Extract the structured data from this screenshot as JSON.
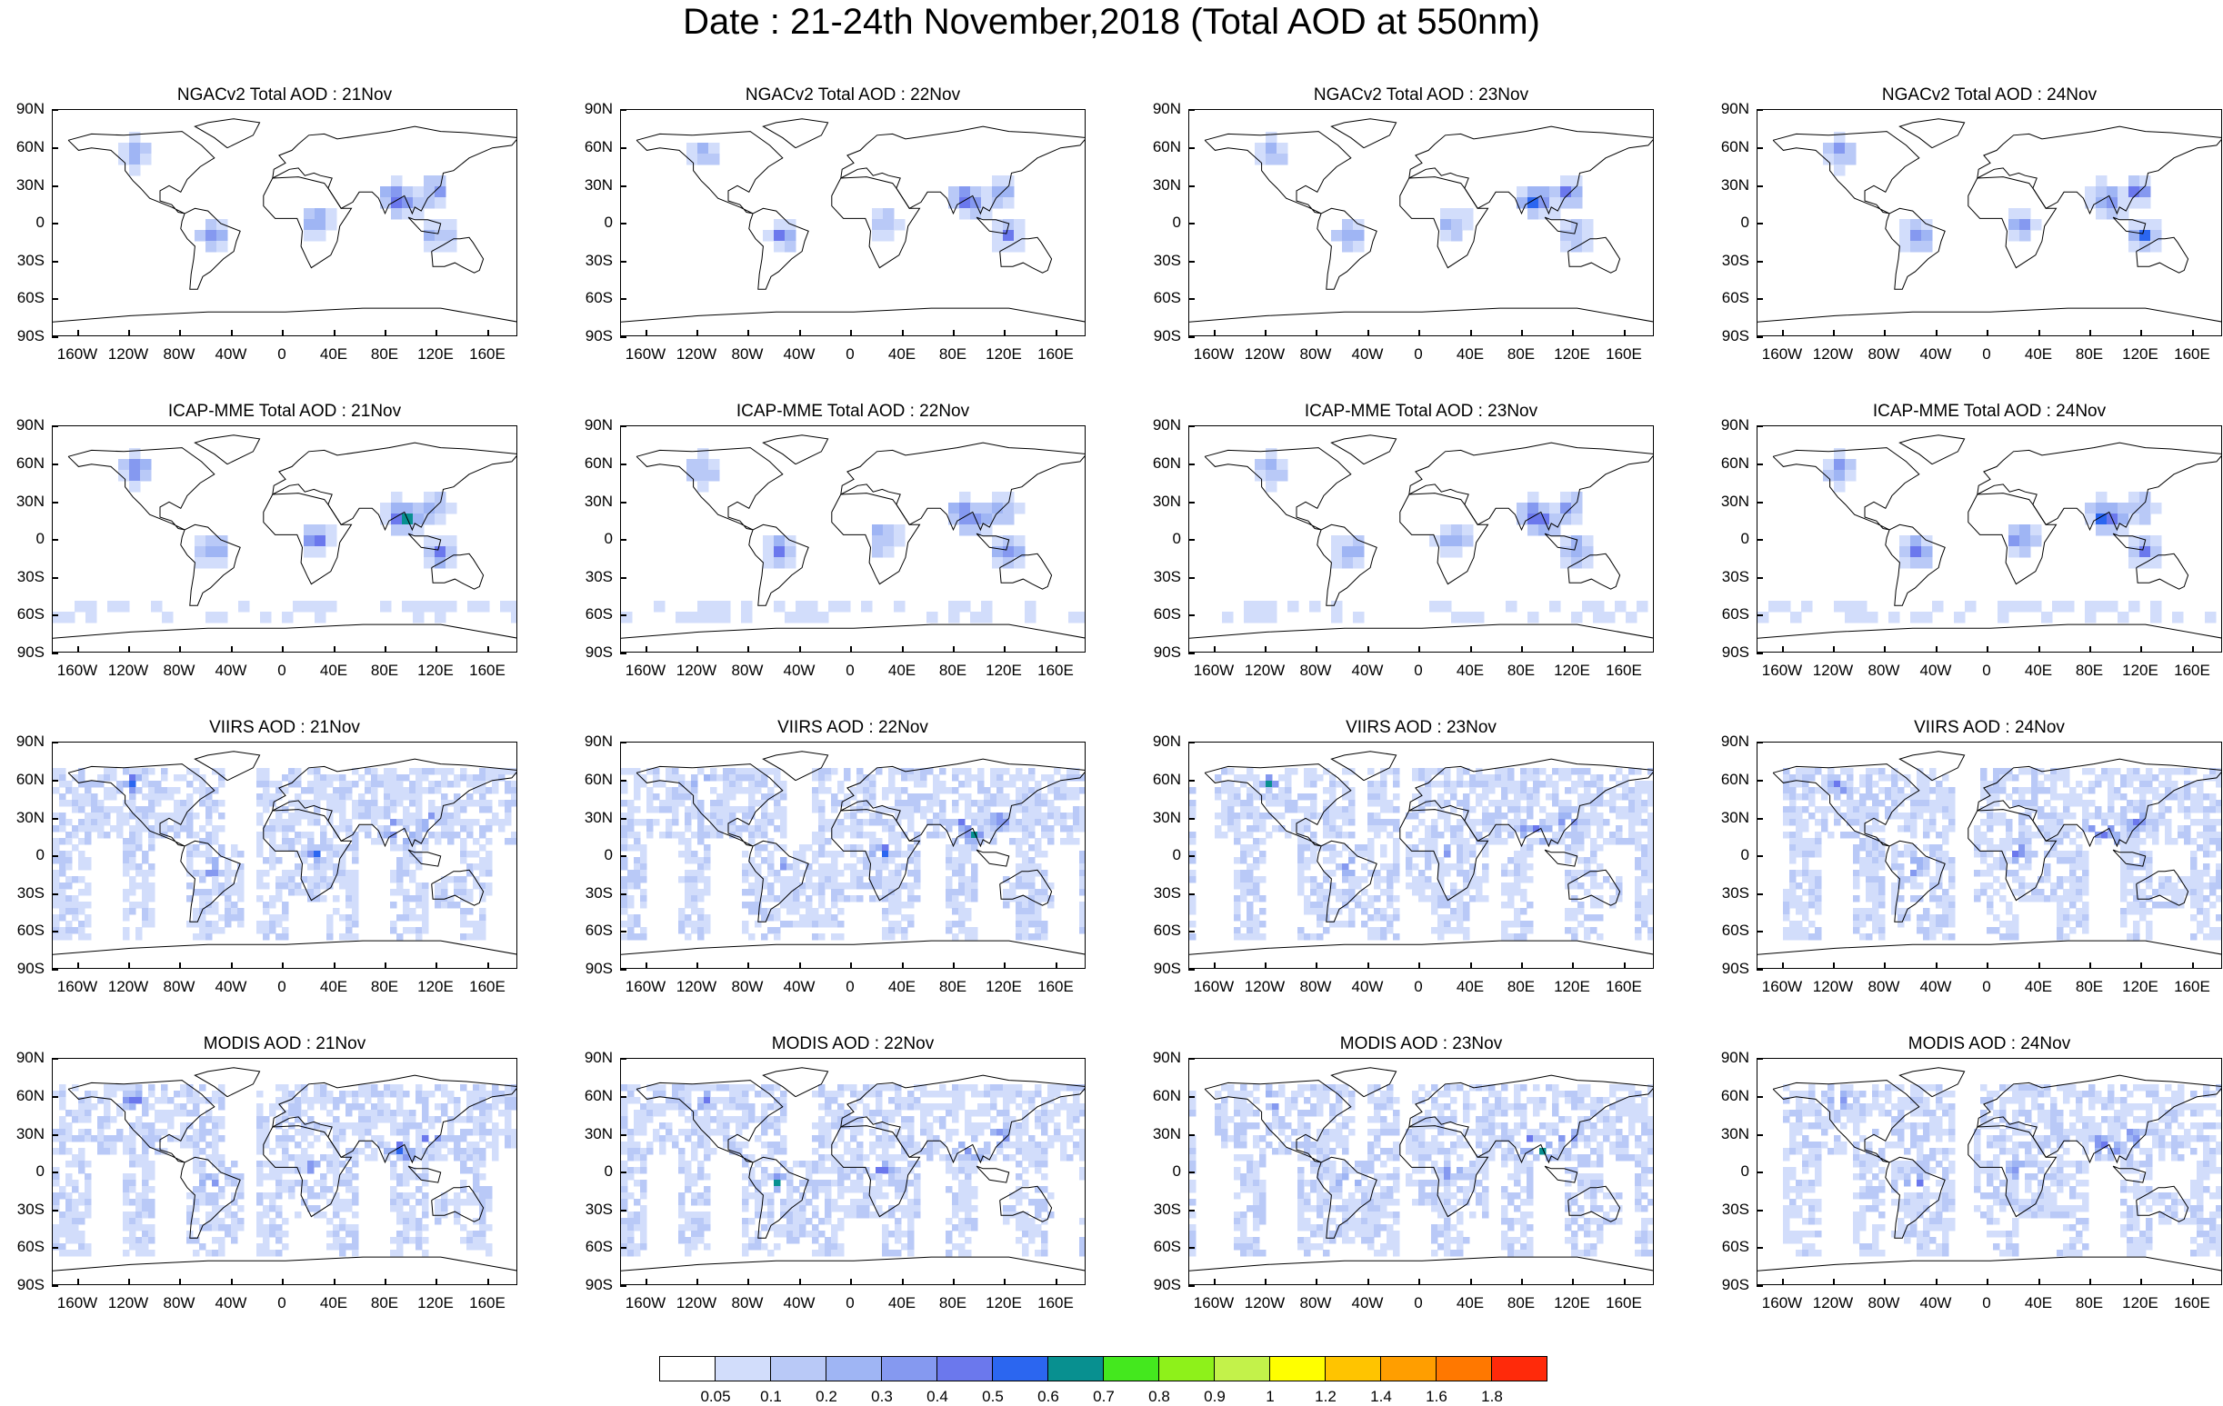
{
  "figure_title": "Date : 21-24th November,2018 (Total AOD at 550nm)",
  "panel_titles": [
    [
      "NGACv2 Total AOD : 21Nov",
      "NGACv2 Total AOD : 22Nov",
      "NGACv2 Total AOD : 23Nov",
      "NGACv2 Total AOD : 24Nov"
    ],
    [
      "ICAP-MME Total AOD : 21Nov",
      "ICAP-MME Total AOD : 22Nov",
      "ICAP-MME Total AOD : 23Nov",
      "ICAP-MME Total AOD : 24Nov"
    ],
    [
      "VIIRS AOD : 21Nov",
      "VIIRS AOD : 22Nov",
      "VIIRS AOD : 23Nov",
      "VIIRS AOD : 24Nov"
    ],
    [
      "MODIS AOD : 21Nov",
      "MODIS AOD : 22Nov",
      "MODIS AOD : 23Nov",
      "MODIS AOD : 24Nov"
    ]
  ],
  "lat_labels": [
    "90N",
    "60N",
    "30N",
    "0",
    "30S",
    "60S",
    "90S"
  ],
  "lon_labels": [
    "160W",
    "120W",
    "80W",
    "40W",
    "0",
    "40E",
    "80E",
    "120E",
    "160E"
  ],
  "colorbar": {
    "labels": [
      "0.05",
      "0.1",
      "0.2",
      "0.3",
      "0.4",
      "0.5",
      "0.6",
      "0.7",
      "0.8",
      "0.9",
      "1",
      "1.2",
      "1.4",
      "1.6",
      "1.8"
    ],
    "colors": [
      "#ffffff",
      "#d2ddfb",
      "#b9c9f7",
      "#9fb5f4",
      "#8599f0",
      "#6b78ed",
      "#2b66f0",
      "#089090",
      "#44e81e",
      "#8ef11a",
      "#c3f24a",
      "#ffff00",
      "#ffc400",
      "#ff9e00",
      "#ff7800",
      "#ff2a0a"
    ]
  }
}
